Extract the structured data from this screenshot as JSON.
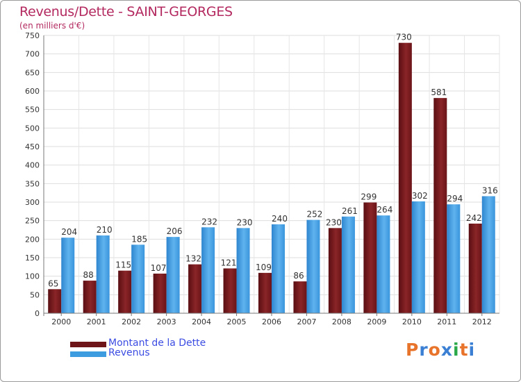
{
  "header": {
    "title": "Revenus/Dette - SAINT-GEORGES",
    "subtitle": "(en milliers d'€)"
  },
  "logo": {
    "text": "Proxiti",
    "colors": [
      "#e8742b",
      "#3a7fd3",
      "#e8742b",
      "#3a7fd3",
      "#2aa84a",
      "#e8742b",
      "#3a7fd3"
    ]
  },
  "chart_data": {
    "type": "bar",
    "categories": [
      "2000",
      "2001",
      "2002",
      "2003",
      "2004",
      "2005",
      "2006",
      "2007",
      "2008",
      "2009",
      "2010",
      "2011",
      "2012"
    ],
    "series": [
      {
        "name": "Montant de la Dette",
        "color": "#7a1c1f",
        "values": [
          65,
          88,
          115,
          107,
          132,
          121,
          109,
          86,
          230,
          299,
          730,
          581,
          242
        ]
      },
      {
        "name": "Revenus",
        "color": "#3d9be0",
        "values": [
          204,
          210,
          185,
          206,
          232,
          230,
          240,
          252,
          261,
          264,
          302,
          294,
          316
        ]
      }
    ],
    "ylim": [
      0,
      750
    ],
    "yticks": [
      0,
      50,
      100,
      150,
      200,
      250,
      300,
      350,
      400,
      450,
      500,
      550,
      600,
      650,
      700,
      750
    ],
    "grid": true,
    "legend_position": "bottom-left"
  }
}
